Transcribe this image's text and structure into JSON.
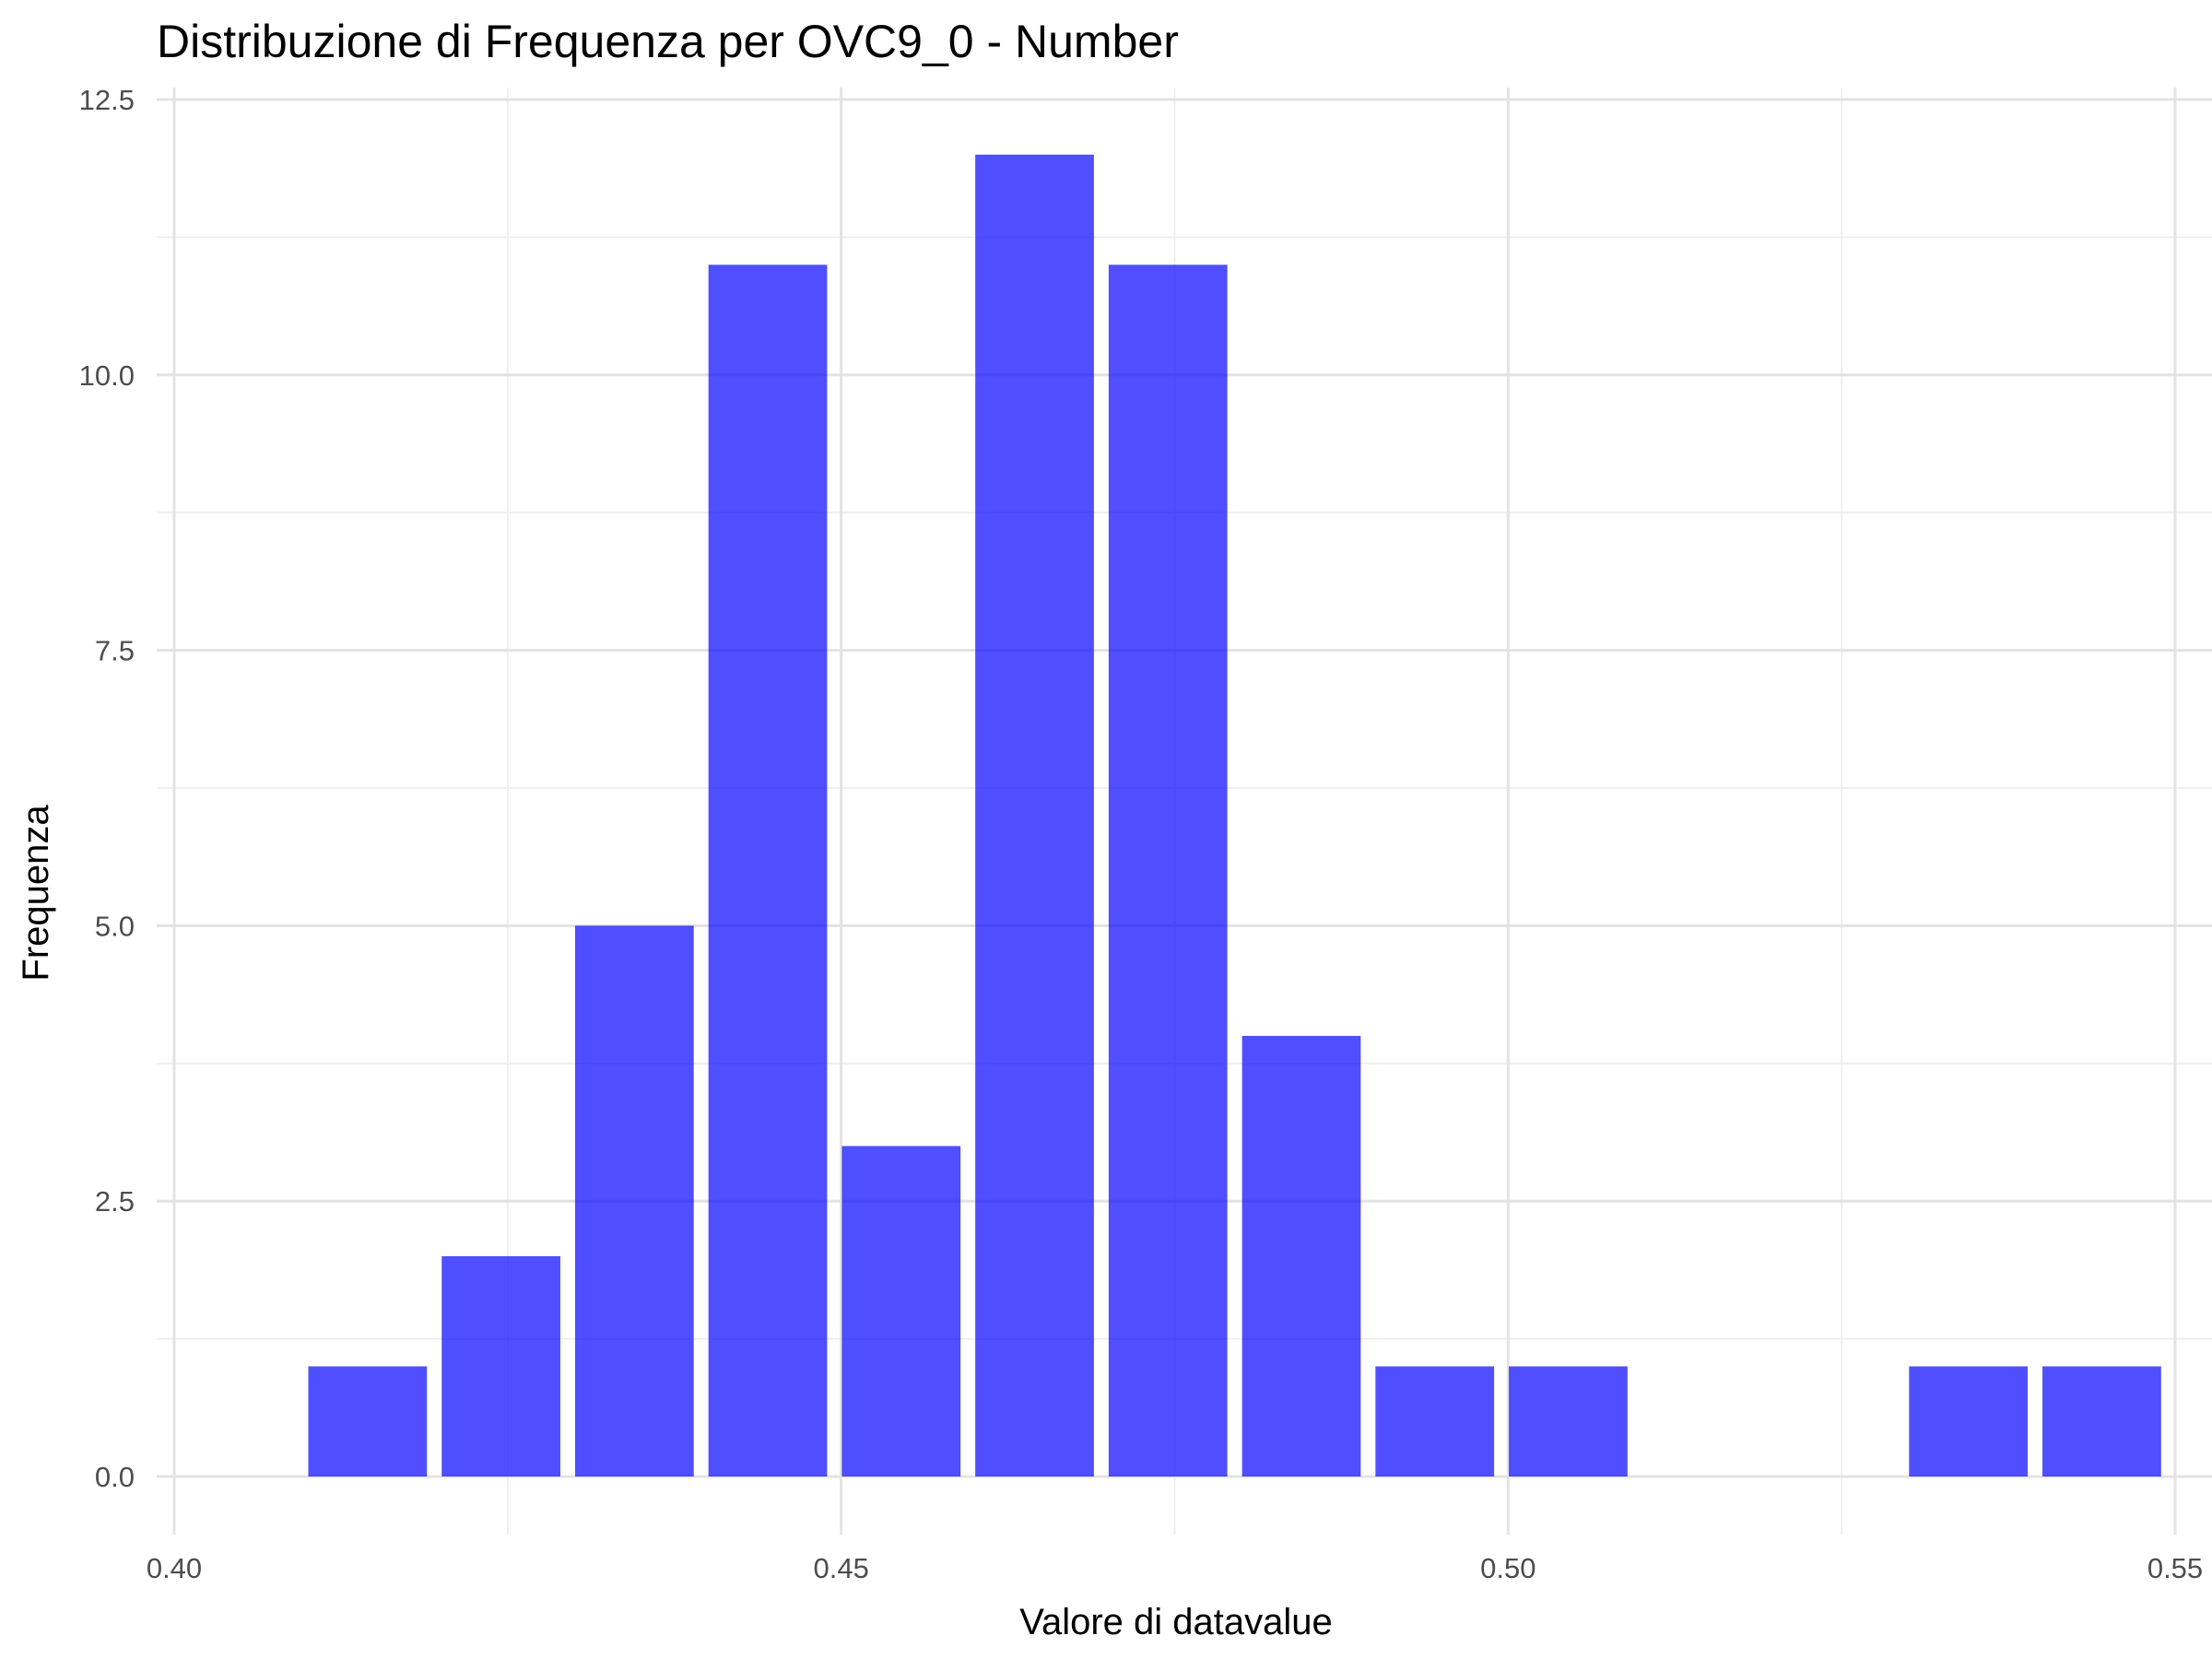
{
  "chart_data": {
    "type": "bar",
    "title": "Distribuzione di Frequenza per OVC9_0 - Number",
    "xlabel": "Valore di datavalue",
    "ylabel": "Frequenza",
    "xlim": [
      0.4,
      0.55
    ],
    "ylim": [
      0,
      12.5
    ],
    "x_ticks": [
      "0.40",
      "0.45",
      "0.50",
      "0.55"
    ],
    "y_ticks": [
      "0.0",
      "2.5",
      "5.0",
      "7.5",
      "10.0",
      "12.5"
    ],
    "bin_width": 0.01,
    "bins": [
      {
        "x": 0.4145,
        "value": 1
      },
      {
        "x": 0.4245,
        "value": 2
      },
      {
        "x": 0.4345,
        "value": 5
      },
      {
        "x": 0.4445,
        "value": 11
      },
      {
        "x": 0.4545,
        "value": 3
      },
      {
        "x": 0.4645,
        "value": 12
      },
      {
        "x": 0.4745,
        "value": 11
      },
      {
        "x": 0.4845,
        "value": 4
      },
      {
        "x": 0.4945,
        "value": 1
      },
      {
        "x": 0.5045,
        "value": 1
      },
      {
        "x": 0.5345,
        "value": 1
      },
      {
        "x": 0.5445,
        "value": 1
      }
    ],
    "grid": true,
    "bar_color": "#0000ff"
  }
}
